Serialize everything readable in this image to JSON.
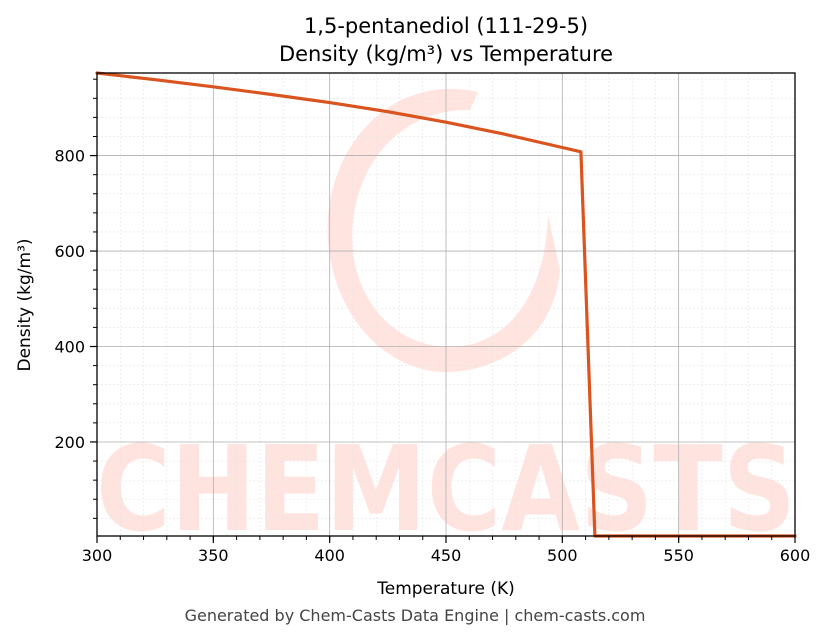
{
  "chart_data": {
    "type": "line",
    "title": "1,5-pentanediol (111-29-5)",
    "subtitle": "Density (kg/m³) vs Temperature",
    "xlabel": "Temperature (K)",
    "ylabel": "Density (kg/m³)",
    "xlim": [
      300,
      600
    ],
    "ylim": [
      3,
      973
    ],
    "x_ticks": [
      300,
      350,
      400,
      450,
      500,
      550,
      600
    ],
    "y_ticks": [
      200,
      400,
      600,
      800
    ],
    "grid": true,
    "series": [
      {
        "color": "#d9541e",
        "x": [
          300,
          325,
          350,
          375,
          400,
          425,
          450,
          475,
          500,
          508,
          514,
          550,
          600
        ],
        "y": [
          973,
          959,
          944,
          928,
          911,
          892,
          870,
          845,
          817,
          808,
          3,
          3,
          3
        ]
      }
    ]
  },
  "watermark": "CHEMCASTS",
  "footer": "Generated by Chem-Casts Data Engine | chem-casts.com"
}
